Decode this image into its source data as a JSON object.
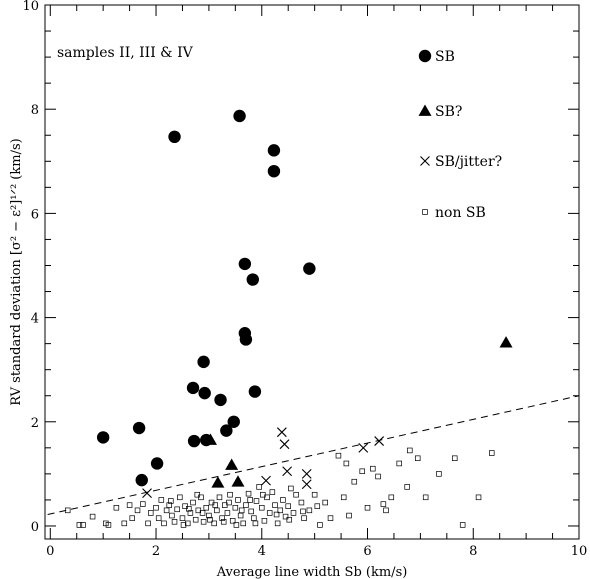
{
  "chart_data": {
    "type": "scatter",
    "xlabel": "Average line width Sb (km/s)",
    "ylabel": "RV standard deviation [σ² − ε²]¹ᐟ² (km/s)",
    "xlim": [
      -0.1,
      10
    ],
    "ylim": [
      -0.25,
      10
    ],
    "xticks": [
      0,
      2,
      4,
      6,
      8,
      10
    ],
    "yticks": [
      0,
      2,
      4,
      6,
      8,
      10
    ],
    "x_minor_step": 0.5,
    "y_minor_step": 0.5,
    "grid": false,
    "annotation": "samples II, III & IV",
    "legend": [
      {
        "label": "SB",
        "marker": "filled-circle"
      },
      {
        "label": "SB?",
        "marker": "filled-triangle"
      },
      {
        "label": "SB/jitter?",
        "marker": "cross"
      },
      {
        "label": "non SB",
        "marker": "open-square"
      }
    ],
    "series": [
      {
        "name": "SB",
        "marker": "filled-circle",
        "points": [
          [
            2.35,
            7.47
          ],
          [
            3.58,
            7.87
          ],
          [
            4.23,
            7.21
          ],
          [
            4.23,
            6.81
          ],
          [
            4.9,
            4.94
          ],
          [
            3.68,
            5.03
          ],
          [
            3.83,
            4.73
          ],
          [
            3.68,
            3.7
          ],
          [
            3.7,
            3.58
          ],
          [
            2.9,
            3.15
          ],
          [
            2.7,
            2.65
          ],
          [
            2.92,
            2.55
          ],
          [
            3.22,
            2.42
          ],
          [
            3.87,
            2.58
          ],
          [
            3.47,
            2.0
          ],
          [
            3.33,
            1.83
          ],
          [
            1.68,
            1.88
          ],
          [
            1.0,
            1.7
          ],
          [
            2.72,
            1.63
          ],
          [
            2.95,
            1.65
          ],
          [
            2.02,
            1.2
          ],
          [
            1.73,
            0.88
          ]
        ]
      },
      {
        "name": "SB?",
        "marker": "filled-triangle",
        "points": [
          [
            8.62,
            3.52
          ],
          [
            3.03,
            1.65
          ],
          [
            3.43,
            1.17
          ],
          [
            3.17,
            0.83
          ],
          [
            3.55,
            0.85
          ]
        ]
      },
      {
        "name": "SB/jitter?",
        "marker": "cross",
        "points": [
          [
            4.38,
            1.8
          ],
          [
            4.43,
            1.57
          ],
          [
            6.22,
            1.63
          ],
          [
            5.92,
            1.5
          ],
          [
            4.48,
            1.05
          ],
          [
            4.85,
            1.0
          ],
          [
            4.08,
            0.87
          ],
          [
            4.85,
            0.8
          ],
          [
            1.83,
            0.63
          ]
        ]
      },
      {
        "name": "non SB",
        "marker": "open-square",
        "points": [
          [
            0.33,
            0.3
          ],
          [
            0.55,
            0.02
          ],
          [
            0.62,
            0.02
          ],
          [
            0.8,
            0.18
          ],
          [
            1.1,
            0.02
          ],
          [
            1.25,
            0.35
          ],
          [
            1.4,
            0.05
          ],
          [
            1.55,
            0.15
          ],
          [
            1.65,
            0.3
          ],
          [
            1.75,
            0.42
          ],
          [
            1.85,
            0.05
          ],
          [
            1.9,
            0.25
          ],
          [
            2.0,
            0.35
          ],
          [
            2.05,
            0.15
          ],
          [
            2.1,
            0.5
          ],
          [
            2.15,
            0.05
          ],
          [
            2.2,
            0.3
          ],
          [
            2.25,
            0.4
          ],
          [
            2.3,
            0.2
          ],
          [
            2.35,
            0.08
          ],
          [
            2.4,
            0.32
          ],
          [
            2.45,
            0.55
          ],
          [
            2.5,
            0.15
          ],
          [
            2.55,
            0.38
          ],
          [
            2.6,
            0.05
          ],
          [
            2.65,
            0.25
          ],
          [
            2.7,
            0.45
          ],
          [
            2.75,
            0.12
          ],
          [
            2.8,
            0.3
          ],
          [
            2.85,
            0.55
          ],
          [
            2.9,
            0.08
          ],
          [
            2.95,
            0.35
          ],
          [
            3.0,
            0.2
          ],
          [
            3.05,
            0.45
          ],
          [
            3.1,
            0.05
          ],
          [
            3.15,
            0.3
          ],
          [
            3.2,
            0.55
          ],
          [
            3.25,
            0.15
          ],
          [
            3.3,
            0.4
          ],
          [
            3.35,
            0.25
          ],
          [
            3.4,
            0.6
          ],
          [
            3.45,
            0.1
          ],
          [
            3.5,
            0.35
          ],
          [
            3.55,
            0.5
          ],
          [
            3.6,
            0.2
          ],
          [
            3.65,
            0.05
          ],
          [
            3.7,
            0.4
          ],
          [
            3.75,
            0.62
          ],
          [
            3.8,
            0.28
          ],
          [
            3.85,
            0.15
          ],
          [
            3.9,
            0.48
          ],
          [
            3.95,
            0.75
          ],
          [
            4.0,
            0.35
          ],
          [
            4.05,
            0.1
          ],
          [
            4.1,
            0.55
          ],
          [
            4.15,
            0.25
          ],
          [
            4.2,
            0.65
          ],
          [
            4.25,
            0.4
          ],
          [
            4.3,
            0.05
          ],
          [
            4.35,
            0.3
          ],
          [
            4.4,
            0.5
          ],
          [
            4.45,
            0.18
          ],
          [
            4.5,
            0.38
          ],
          [
            4.55,
            0.72
          ],
          [
            4.6,
            0.25
          ],
          [
            4.65,
            0.6
          ],
          [
            4.75,
            0.45
          ],
          [
            4.8,
            0.15
          ],
          [
            4.9,
            0.3
          ],
          [
            5.0,
            0.6
          ],
          [
            5.1,
            0.02
          ],
          [
            5.2,
            0.45
          ],
          [
            5.3,
            0.15
          ],
          [
            5.45,
            1.35
          ],
          [
            5.55,
            0.55
          ],
          [
            5.6,
            1.2
          ],
          [
            5.65,
            0.2
          ],
          [
            5.75,
            0.85
          ],
          [
            5.9,
            1.05
          ],
          [
            6.0,
            0.35
          ],
          [
            6.1,
            1.1
          ],
          [
            6.2,
            0.95
          ],
          [
            6.3,
            0.42
          ],
          [
            6.35,
            0.3
          ],
          [
            6.45,
            0.55
          ],
          [
            6.6,
            1.2
          ],
          [
            6.75,
            0.75
          ],
          [
            6.8,
            1.45
          ],
          [
            6.95,
            1.3
          ],
          [
            7.1,
            0.55
          ],
          [
            7.35,
            1.0
          ],
          [
            7.65,
            1.3
          ],
          [
            7.8,
            0.02
          ],
          [
            8.1,
            0.55
          ],
          [
            8.35,
            1.4
          ],
          [
            1.05,
            0.05
          ],
          [
            1.5,
            0.4
          ],
          [
            2.28,
            0.48
          ],
          [
            2.52,
            0.02
          ],
          [
            2.78,
            0.6
          ],
          [
            3.02,
            0.12
          ],
          [
            3.28,
            0.08
          ],
          [
            3.52,
            0.02
          ],
          [
            3.78,
            0.5
          ],
          [
            4.02,
            0.6
          ],
          [
            4.28,
            0.22
          ],
          [
            4.52,
            0.12
          ],
          [
            4.78,
            0.28
          ],
          [
            5.05,
            0.38
          ],
          [
            2.62,
            0.33
          ],
          [
            2.88,
            0.25
          ],
          [
            3.12,
            0.4
          ],
          [
            3.38,
            0.45
          ],
          [
            3.62,
            0.3
          ],
          [
            3.88,
            0.05
          ]
        ]
      }
    ],
    "reference_line": {
      "style": "dashed",
      "points": [
        [
          -0.05,
          0.22
        ],
        [
          10,
          2.5
        ]
      ]
    }
  }
}
